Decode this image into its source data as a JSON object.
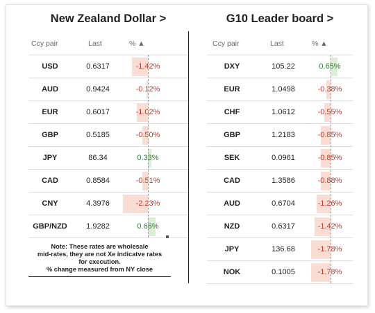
{
  "left_panel": {
    "title": "New Zealand Dollar >",
    "headers": {
      "pair": "Ccy pair",
      "last": "Last",
      "pct": "% ▲"
    },
    "rows": [
      {
        "pair": "USD",
        "last": "0.6317",
        "pct": "-1.42%",
        "value": -1.42
      },
      {
        "pair": "AUD",
        "last": "0.9424",
        "pct": "-0.12%",
        "value": -0.12
      },
      {
        "pair": "EUR",
        "last": "0.6017",
        "pct": "-1.02%",
        "value": -1.02
      },
      {
        "pair": "GBP",
        "last": "0.5185",
        "pct": "-0.50%",
        "value": -0.5
      },
      {
        "pair": "JPY",
        "last": "86.34",
        "pct": "0.33%",
        "value": 0.33
      },
      {
        "pair": "CAD",
        "last": "0.8584",
        "pct": "-0.51%",
        "value": -0.51
      },
      {
        "pair": "CNY",
        "last": "4.3976",
        "pct": "-2.23%",
        "value": -2.23
      },
      {
        "pair": "GBP/NZD",
        "last": "1.9282",
        "pct": "0.66%",
        "value": 0.66
      }
    ],
    "note_lines": [
      "Note: These rates are wholesale",
      "mid-rates, they are not Xe indicatve rates",
      "for execution.",
      "% change measured from NY close"
    ]
  },
  "right_panel": {
    "title": "G10 Leader board >",
    "headers": {
      "pair": "Ccy pair",
      "last": "Last",
      "pct": "% ▲"
    },
    "rows": [
      {
        "pair": "DXY",
        "last": "105.22",
        "pct": "0.65%",
        "value": 0.65
      },
      {
        "pair": "EUR",
        "last": "1.0498",
        "pct": "-0.38%",
        "value": -0.38
      },
      {
        "pair": "CHF",
        "last": "1.0612",
        "pct": "-0.55%",
        "value": -0.55
      },
      {
        "pair": "GBP",
        "last": "1.2183",
        "pct": "-0.85%",
        "value": -0.85
      },
      {
        "pair": "SEK",
        "last": "0.0961",
        "pct": "-0.85%",
        "value": -0.85
      },
      {
        "pair": "CAD",
        "last": "1.3586",
        "pct": "-0.88%",
        "value": -0.88
      },
      {
        "pair": "AUD",
        "last": "0.6704",
        "pct": "-1.26%",
        "value": -1.26
      },
      {
        "pair": "NZD",
        "last": "0.6317",
        "pct": "-1.42%",
        "value": -1.42
      },
      {
        "pair": "JPY",
        "last": "136.68",
        "pct": "-1.78%",
        "value": -1.78
      },
      {
        "pair": "NOK",
        "last": "0.1005",
        "pct": "-1.78%",
        "value": -1.78
      }
    ]
  },
  "colors": {
    "negative_text": "#c0392b",
    "positive_text": "#2e7d32",
    "negative_bar": "#f9ddd3",
    "positive_bar": "#dceed5"
  }
}
